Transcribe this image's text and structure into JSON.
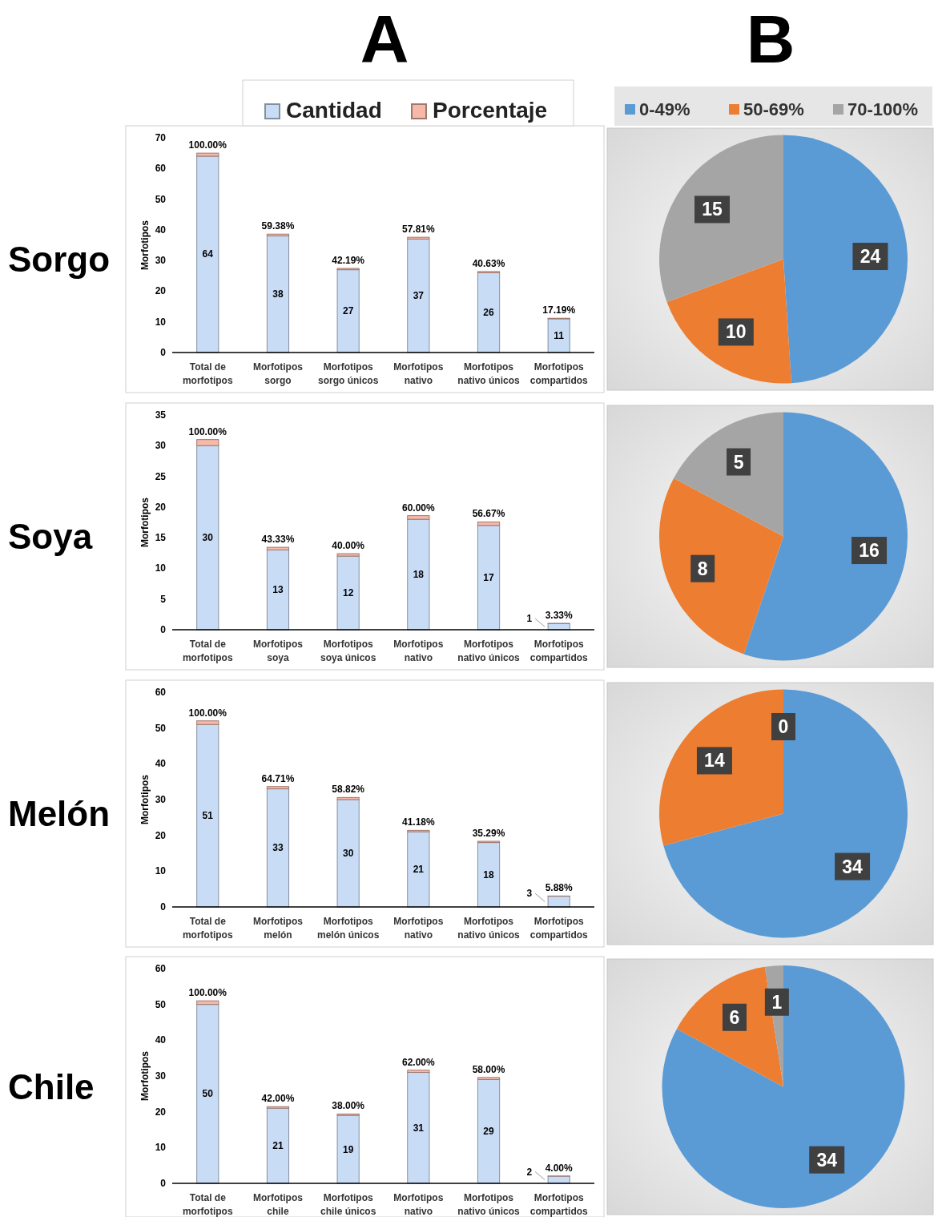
{
  "chart_data": [
    {
      "type": "bar",
      "stacked": true,
      "title": "Sorgo",
      "annotations": [
        "A"
      ],
      "ylabel": "Morfotipos",
      "legend": "top",
      "categories": [
        "Total de morfotipos",
        "Morfotipos sorgo",
        "Morfotipos sorgo únicos",
        "Morfotipos nativo",
        "Morfotipos nativo únicos",
        "Morfotipos compartidos"
      ],
      "ylim": [
        0,
        70
      ],
      "yticks": [
        0,
        10,
        20,
        30,
        40,
        50,
        60,
        70
      ],
      "series": [
        {
          "name": "Cantidad",
          "color": "#c9dcf6",
          "values": [
            64,
            38,
            27,
            37,
            26,
            11
          ],
          "value_labels": [
            "64",
            "38",
            "27",
            "37",
            "26",
            "11"
          ]
        },
        {
          "name": "Porcentaje",
          "color": "#f6b8a8",
          "values": [
            1,
            0.5938,
            0.4219,
            0.5781,
            0.4063,
            0.1719
          ],
          "value_labels": [
            "100.00%",
            "59.38%",
            "42.19%",
            "57.81%",
            "40.63%",
            "17.19%"
          ]
        }
      ]
    },
    {
      "type": "pie",
      "annotations": [
        "B"
      ],
      "legend": "top",
      "data_labels": true,
      "categories": [
        "0-49%",
        "50-69%",
        "70-100%"
      ],
      "values": [
        24,
        10,
        15
      ],
      "colors": [
        "#5b9bd5",
        "#ed7d31",
        "#a5a5a5"
      ]
    },
    {
      "type": "bar",
      "stacked": true,
      "title": "Soya",
      "ylabel": "Morfotipos",
      "categories": [
        "Total de morfotipos",
        "Morfotipos soya",
        "Morfotipos soya únicos",
        "Morfotipos nativo",
        "Morfotipos nativo únicos",
        "Morfotipos compartidos"
      ],
      "ylim": [
        0,
        35
      ],
      "yticks": [
        0,
        5,
        10,
        15,
        20,
        25,
        30,
        35
      ],
      "series": [
        {
          "color": "#c9dcf6",
          "values": [
            30,
            13,
            12,
            18,
            17,
            1
          ],
          "value_labels": [
            "30",
            "13",
            "12",
            "18",
            "17",
            "1"
          ]
        },
        {
          "color": "#f6b8a8",
          "values": [
            1,
            0.4333,
            0.4,
            0.6,
            0.5667,
            0.0333
          ],
          "value_labels": [
            "100.00%",
            "43.33%",
            "40.00%",
            "60.00%",
            "56.67%",
            "3.33%"
          ]
        }
      ]
    },
    {
      "type": "pie",
      "data_labels": true,
      "categories": [
        null,
        null,
        null
      ],
      "values": [
        16,
        8,
        5
      ],
      "colors": [
        "#5b9bd5",
        "#ed7d31",
        "#a5a5a5"
      ]
    },
    {
      "type": "bar",
      "stacked": true,
      "title": "Melón",
      "ylabel": "Morfotipos",
      "categories": [
        "Total de morfotipos",
        "Morfotipos melón",
        "Morfotipos melón únicos",
        "Morfotipos nativo",
        "Morfotipos nativo únicos",
        "Morfotipos compartidos"
      ],
      "ylim": [
        0,
        60
      ],
      "yticks": [
        0,
        10,
        20,
        30,
        40,
        50,
        60
      ],
      "series": [
        {
          "color": "#c9dcf6",
          "values": [
            51,
            33,
            30,
            21,
            18,
            3
          ],
          "value_labels": [
            "51",
            "33",
            "30",
            "21",
            "18",
            "3"
          ]
        },
        {
          "color": "#f6b8a8",
          "values": [
            1,
            0.6471,
            0.5882,
            0.4118,
            0.3529,
            0.0588
          ],
          "value_labels": [
            "100.00%",
            "64.71%",
            "58.82%",
            "41.18%",
            "35.29%",
            "5.88%"
          ]
        }
      ]
    },
    {
      "type": "pie",
      "categories": [
        null,
        null,
        null
      ],
      "values": [
        34,
        14,
        0
      ],
      "value_labels": [
        "34",
        "14",
        "0"
      ],
      "colors": [
        "#5b9bd5",
        "#ed7d31",
        "#a5a5a5"
      ]
    },
    {
      "type": "bar",
      "stacked": true,
      "title": "Chile",
      "ylabel": "Morfotipos",
      "categories": [
        "Total de morfotipos",
        "Morfotipos chile",
        "Morfotipos chile únicos",
        "Morfotipos nativo",
        "Morfotipos nativo únicos",
        "Morfotipos compartidos"
      ],
      "ylim": [
        0,
        60
      ],
      "yticks": [
        0,
        10,
        20,
        30,
        40,
        50,
        60
      ],
      "series": [
        {
          "color": "#c9dcf6",
          "values": [
            50,
            21,
            19,
            31,
            29,
            2
          ],
          "value_labels": [
            "50",
            "21",
            "19",
            "31",
            "29",
            "2"
          ]
        },
        {
          "color": "#f6b8a8",
          "values": [
            1,
            0.42,
            0.38,
            0.62,
            0.58,
            0.04
          ],
          "value_labels": [
            "100.00%",
            "42.00%",
            "38.00%",
            "62.00%",
            "58.00%",
            "4.00%"
          ]
        }
      ]
    },
    {
      "type": "pie",
      "data_labels": true,
      "categories": [
        null,
        null,
        null
      ],
      "values": [
        34,
        6,
        1
      ],
      "colors": [
        "#5b9bd5",
        "#ed7d31",
        "#a5a5a5"
      ]
    }
  ]
}
